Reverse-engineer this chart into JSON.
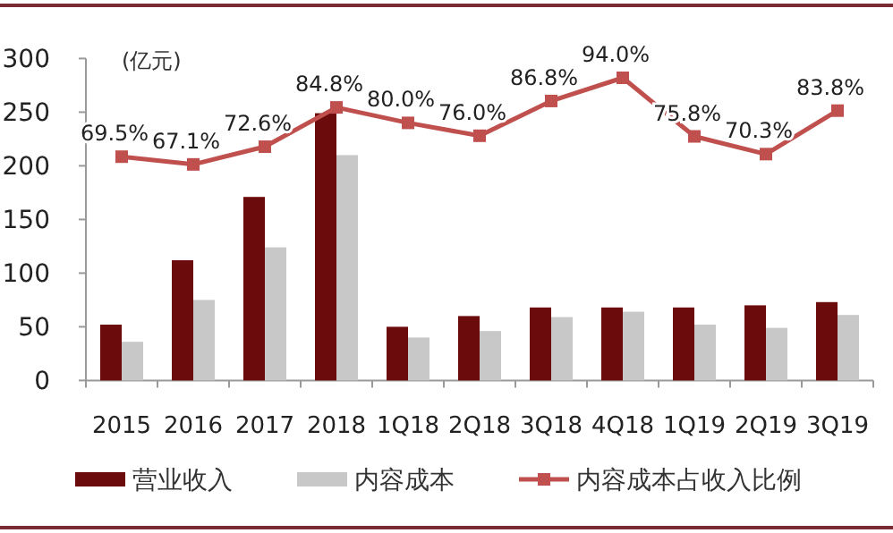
{
  "chart_data": {
    "type": "bar",
    "ylabel": "(亿元)",
    "categories": [
      "2015",
      "2016",
      "2017",
      "2018",
      "1Q18",
      "2Q18",
      "3Q18",
      "4Q18",
      "1Q19",
      "2Q19",
      "3Q19"
    ],
    "series": [
      {
        "name": "营业收入",
        "color": "#6b0b0b",
        "values": [
          52,
          112,
          171,
          249,
          50,
          60,
          68,
          68,
          68,
          70,
          73
        ]
      },
      {
        "name": "内容成本",
        "color": "#c8c8c8",
        "values": [
          36,
          75,
          124,
          210,
          40,
          46,
          59,
          64,
          52,
          49,
          61
        ]
      },
      {
        "name": "内容成本占收入比例",
        "type": "line",
        "axis": "y2",
        "color": "#c0504d",
        "values": [
          69.5,
          67.1,
          72.6,
          84.8,
          80.0,
          76.0,
          86.8,
          94.0,
          75.8,
          70.3,
          83.8
        ],
        "value_labels": [
          "69.5%",
          "67.1%",
          "72.6%",
          "84.8%",
          "80.0%",
          "76.0%",
          "86.8%",
          "94.0%",
          "75.8%",
          "70.3%",
          "83.8%"
        ]
      }
    ],
    "ylim": [
      0,
      300
    ],
    "yticks": [
      0,
      50,
      100,
      150,
      200,
      250,
      300
    ],
    "y2lim": [
      0,
      100
    ],
    "legend": "bottom",
    "marker": "square"
  }
}
